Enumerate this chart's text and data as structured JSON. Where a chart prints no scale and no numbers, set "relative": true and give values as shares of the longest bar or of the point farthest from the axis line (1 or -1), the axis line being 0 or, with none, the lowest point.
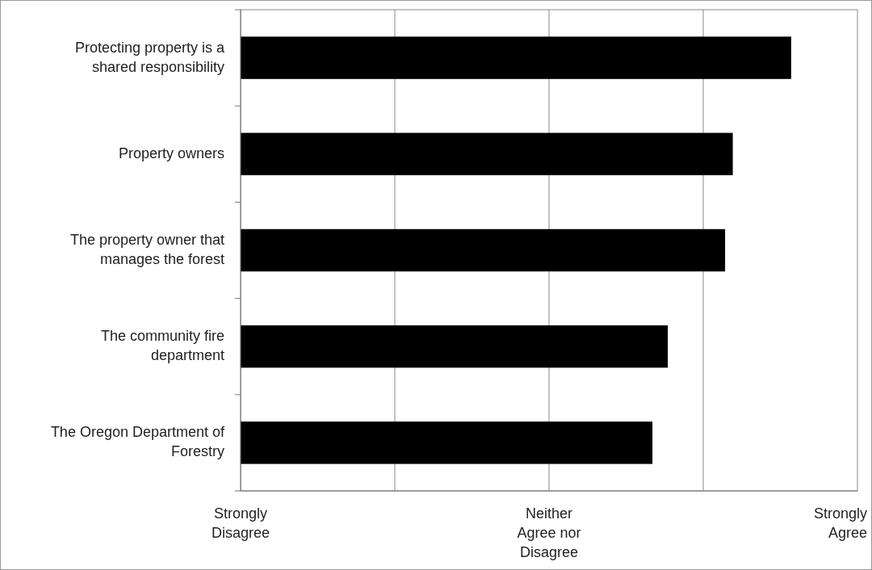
{
  "chart_data": {
    "type": "bar",
    "orientation": "horizontal",
    "relative": true,
    "categories": [
      "Protecting property is a shared responsibility",
      "Property owners",
      "The property owner that manages the forest",
      "The community fire department",
      "The Oregon Department of Forestry"
    ],
    "values": [
      1,
      0.894,
      0.88,
      0.776,
      0.748
    ],
    "color": "#000000",
    "annotations": [
      "Strongly Disagree",
      "Neither Agree nor Disagree",
      "Strongly Agree"
    ],
    "grid": "x"
  }
}
